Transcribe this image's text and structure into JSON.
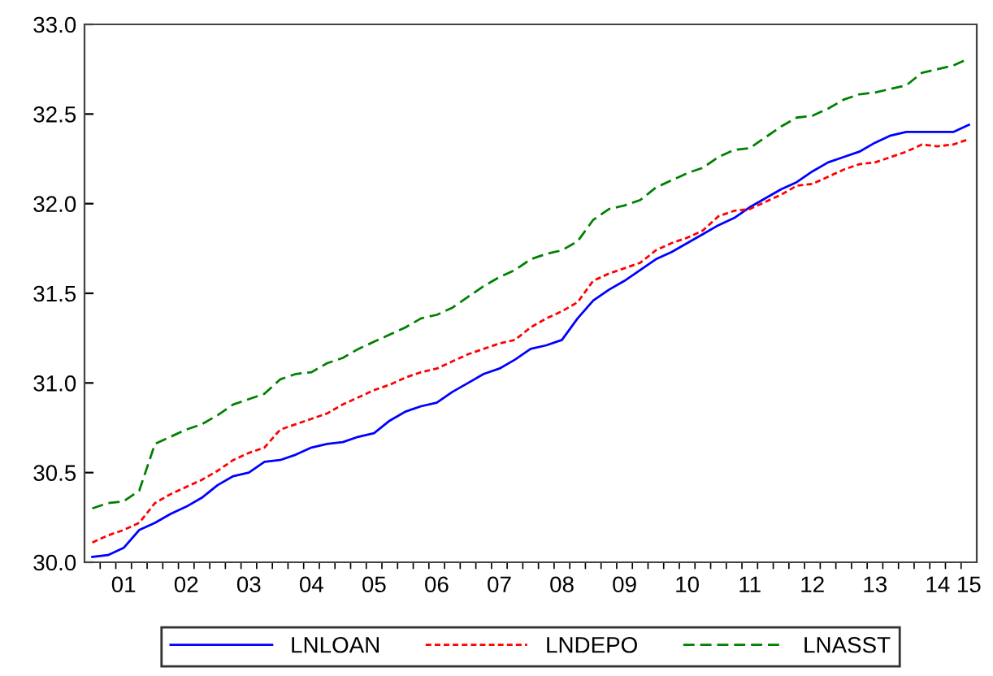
{
  "chart_data": {
    "type": "line",
    "categories": [
      null,
      null,
      "01",
      null,
      null,
      null,
      "02",
      null,
      null,
      null,
      "03",
      null,
      null,
      null,
      "04",
      null,
      null,
      null,
      "05",
      null,
      null,
      null,
      "06",
      null,
      null,
      null,
      "07",
      null,
      null,
      null,
      "08",
      null,
      null,
      null,
      "09",
      null,
      null,
      null,
      "10",
      null,
      null,
      null,
      "11",
      null,
      null,
      null,
      "12",
      null,
      null,
      null,
      "13",
      null,
      null,
      null,
      "14",
      null,
      "15"
    ],
    "series": [
      {
        "name": "LNLOAN",
        "color": "#0000ff",
        "line_style": "solid",
        "values": [
          30.03,
          30.04,
          30.08,
          30.18,
          30.22,
          30.27,
          30.31,
          30.36,
          30.43,
          30.48,
          30.5,
          30.56,
          30.57,
          30.6,
          30.64,
          30.66,
          30.67,
          30.7,
          30.72,
          30.79,
          30.84,
          30.87,
          30.89,
          30.95,
          31.0,
          31.05,
          31.08,
          31.13,
          31.19,
          31.21,
          31.24,
          31.36,
          31.46,
          31.52,
          31.57,
          31.63,
          31.69,
          31.73,
          31.78,
          31.83,
          31.88,
          31.92,
          31.98,
          32.03,
          32.08,
          32.12,
          32.18,
          32.23,
          32.26,
          32.29,
          32.34,
          32.38,
          32.4,
          32.4,
          32.4,
          32.4,
          32.44
        ]
      },
      {
        "name": "LNDEPO",
        "color": "#ff0000",
        "line_style": "dotted",
        "values": [
          30.11,
          30.15,
          30.18,
          30.22,
          30.33,
          30.38,
          30.42,
          30.46,
          30.51,
          30.57,
          30.61,
          30.64,
          30.74,
          30.77,
          30.8,
          30.83,
          30.88,
          30.92,
          30.96,
          30.99,
          31.03,
          31.06,
          31.08,
          31.12,
          31.16,
          31.19,
          31.22,
          31.24,
          31.31,
          31.36,
          31.4,
          31.45,
          31.57,
          31.61,
          31.64,
          31.67,
          31.74,
          31.78,
          31.81,
          31.85,
          31.93,
          31.96,
          31.97,
          32.01,
          32.05,
          32.1,
          32.11,
          32.15,
          32.19,
          32.22,
          32.23,
          32.26,
          32.29,
          32.33,
          32.32,
          32.33,
          32.36
        ]
      },
      {
        "name": "LNASST",
        "color": "#008000",
        "line_style": "dashed",
        "values": [
          30.3,
          30.33,
          30.34,
          30.4,
          30.66,
          30.7,
          30.74,
          30.77,
          30.82,
          30.88,
          30.91,
          30.94,
          31.02,
          31.05,
          31.06,
          31.11,
          31.14,
          31.19,
          31.23,
          31.27,
          31.31,
          31.36,
          31.38,
          31.42,
          31.48,
          31.54,
          31.59,
          31.63,
          31.69,
          31.72,
          31.74,
          31.79,
          31.91,
          31.97,
          31.99,
          32.02,
          32.09,
          32.13,
          32.17,
          32.2,
          32.26,
          32.3,
          32.31,
          32.37,
          32.43,
          32.48,
          32.49,
          32.53,
          32.58,
          32.61,
          32.62,
          32.64,
          32.66,
          32.73,
          32.75,
          32.77,
          32.81
        ]
      }
    ],
    "ylim": [
      30,
      33
    ],
    "yticks": [
      {
        "value": 30,
        "label": "30.0"
      },
      {
        "value": 30.5,
        "label": "30.5"
      },
      {
        "value": 31,
        "label": "31.0"
      },
      {
        "value": 31.5,
        "label": "31.5"
      },
      {
        "value": 32,
        "label": "32.0"
      },
      {
        "value": 32.5,
        "label": "32.5"
      },
      {
        "value": 33,
        "label": "33.0"
      }
    ],
    "grid": false,
    "legend": "bottom"
  }
}
